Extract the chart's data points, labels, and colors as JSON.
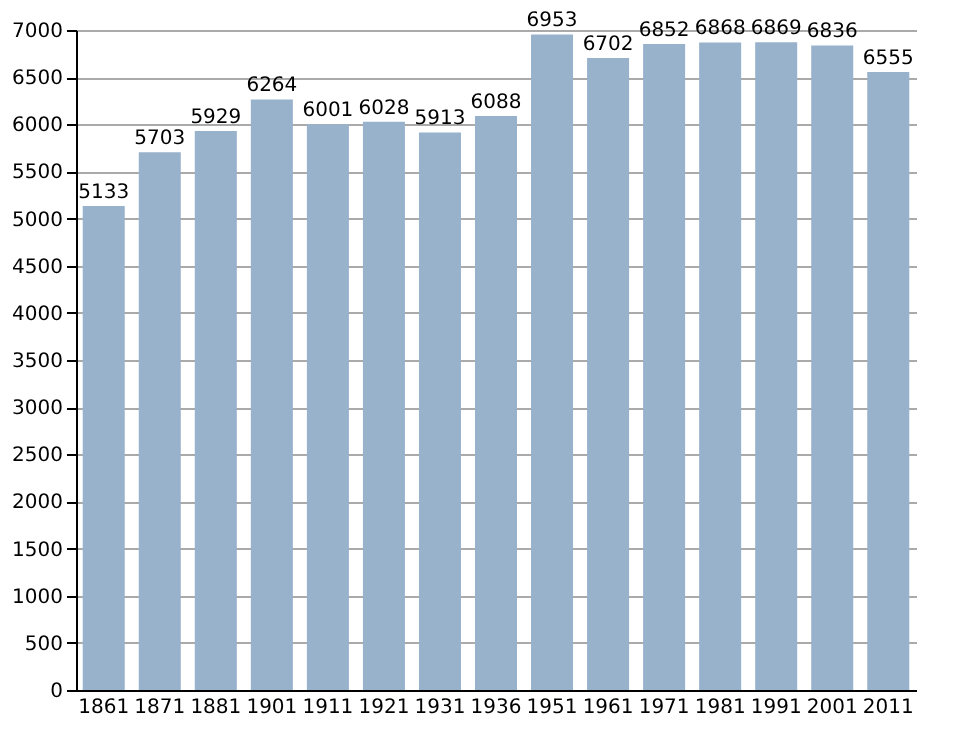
{
  "chart_data": {
    "type": "bar",
    "categories": [
      "1861",
      "1871",
      "1881",
      "1901",
      "1911",
      "1921",
      "1931",
      "1936",
      "1951",
      "1961",
      "1971",
      "1981",
      "1991",
      "2001",
      "2011"
    ],
    "values": [
      5133,
      5703,
      5929,
      6264,
      6001,
      6028,
      5913,
      6088,
      6953,
      6702,
      6852,
      6868,
      6869,
      6836,
      6555
    ],
    "color": "#98b2cc",
    "data_labels": true,
    "grid": "y",
    "ylim": [
      0,
      7000
    ],
    "yticks": [
      0,
      500,
      1000,
      1500,
      2000,
      2500,
      3000,
      3500,
      4000,
      4500,
      5000,
      5500,
      6000,
      6500,
      7000
    ]
  }
}
